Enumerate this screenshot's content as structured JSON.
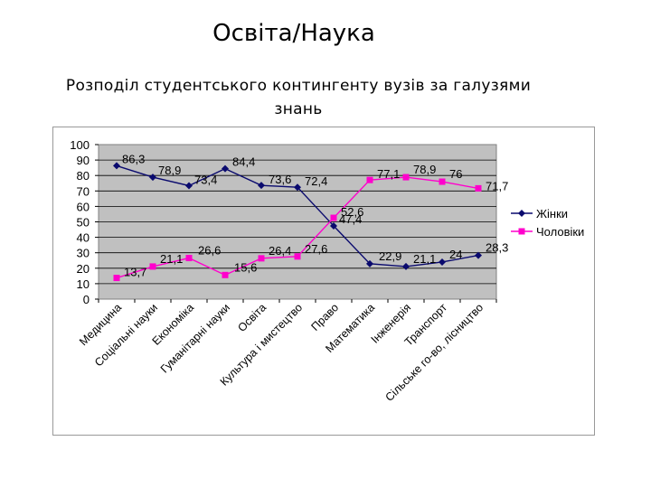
{
  "header": {
    "title": "Освіта/Наука",
    "subtitle_line1": "Розподіл студентського контингенту вузів за галузями",
    "subtitle_line2": "знань"
  },
  "chart_data": {
    "type": "line",
    "categories": [
      "Медицина",
      "Соціальні науки",
      "Економіка",
      "Гуманітарні науки",
      "Освіта",
      "Культура і мистецтво",
      "Право",
      "Математика",
      "Інженерія",
      "Транспорт",
      "Сільське го-во, лісництво"
    ],
    "series": [
      {
        "name": "Жінки",
        "color": "#0a0a6e",
        "marker": "diamond",
        "values": [
          86.3,
          78.9,
          73.4,
          84.4,
          73.6,
          72.4,
          47.4,
          22.9,
          21.1,
          24,
          28.3
        ]
      },
      {
        "name": "Чоловіки",
        "color": "#ff00cc",
        "marker": "square",
        "values": [
          13.7,
          21.1,
          26.6,
          15.6,
          26.4,
          27.6,
          52.6,
          77.1,
          78.9,
          76,
          71.7
        ]
      }
    ],
    "data_labels": [
      {
        "text": "86,3"
      },
      {
        "text": "78,9"
      },
      {
        "text": "73,4"
      },
      {
        "text": "84,4"
      },
      {
        "text": "73,6"
      },
      {
        "text": "72,4"
      },
      {
        "text": "47,4"
      },
      {
        "text": "22,9"
      },
      {
        "text": "21,1"
      },
      {
        "text": "24"
      },
      {
        "text": "28,3"
      },
      {
        "text": "13,7"
      },
      {
        "text": "21,1"
      },
      {
        "text": "26,6"
      },
      {
        "text": "15,6"
      },
      {
        "text": "26,4"
      },
      {
        "text": "27,6"
      },
      {
        "text": "52,6"
      },
      {
        "text": "77,1"
      },
      {
        "text": "78,9"
      },
      {
        "text": "76"
      },
      {
        "text": "71,7"
      }
    ],
    "ylim": [
      0,
      100
    ],
    "yticks": [
      0,
      10,
      20,
      30,
      40,
      50,
      60,
      70,
      80,
      90,
      100
    ],
    "grid": "horizontal",
    "legend_position": "right",
    "plot_background": "#c0c0c0"
  }
}
